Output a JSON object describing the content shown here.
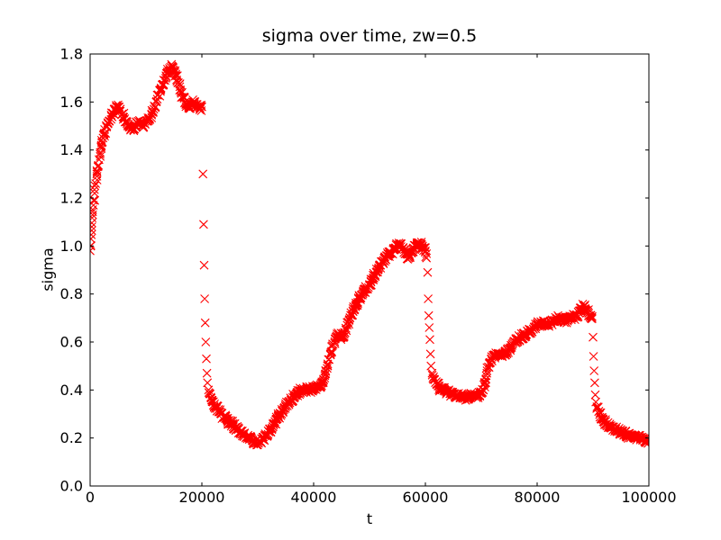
{
  "page": {
    "background": "#ffffff"
  },
  "chart_data": {
    "type": "scatter",
    "title": "sigma over time, zw=0.5",
    "xlabel": "t",
    "ylabel": "sigma",
    "xlim": [
      0,
      100000
    ],
    "ylim": [
      0.0,
      1.8
    ],
    "xticks": [
      0,
      20000,
      40000,
      60000,
      80000,
      100000
    ],
    "xtick_labels": [
      "0",
      "20000",
      "40000",
      "60000",
      "80000",
      "100000"
    ],
    "yticks": [
      0.0,
      0.2,
      0.4,
      0.6,
      0.8,
      1.0,
      1.2,
      1.4,
      1.6,
      1.8
    ],
    "ytick_labels": [
      "0.0",
      "0.2",
      "0.4",
      "0.6",
      "0.8",
      "1.0",
      "1.2",
      "1.4",
      "1.6",
      "1.8"
    ],
    "grid": false,
    "legend": null,
    "marker": "x",
    "marker_color": "#ff0000",
    "marker_size_px": 9,
    "axis_color": "#000000",
    "series": [
      {
        "name": "sigma",
        "points": [
          [
            0,
            0.98,
            1
          ],
          [
            150,
            1.03,
            1
          ],
          [
            300,
            1.08,
            1
          ],
          [
            450,
            1.13,
            1
          ],
          [
            600,
            1.17,
            1
          ],
          [
            800,
            1.22,
            1
          ],
          [
            1000,
            1.26,
            1
          ],
          [
            1200,
            1.3,
            1
          ],
          [
            1400,
            1.33,
            1
          ],
          [
            1600,
            1.36,
            1
          ],
          [
            1800,
            1.39,
            1
          ],
          [
            2000,
            1.42,
            1
          ],
          [
            2300,
            1.45,
            1
          ],
          [
            2600,
            1.47,
            1
          ],
          [
            3000,
            1.5,
            1
          ],
          [
            3400,
            1.52,
            1
          ],
          [
            3800,
            1.54,
            1
          ],
          [
            4200,
            1.55,
            1
          ],
          [
            4600,
            1.57,
            1
          ],
          [
            5000,
            1.58,
            1
          ],
          [
            5400,
            1.57,
            1
          ],
          [
            5800,
            1.55,
            1
          ],
          [
            6200,
            1.53,
            1
          ],
          [
            6600,
            1.51,
            1
          ],
          [
            7000,
            1.5,
            1
          ],
          [
            7400,
            1.49,
            1
          ],
          [
            7800,
            1.48,
            1
          ],
          [
            8200,
            1.5,
            1
          ],
          [
            8600,
            1.52,
            1
          ],
          [
            9000,
            1.51,
            1
          ],
          [
            9400,
            1.5,
            1
          ],
          [
            9800,
            1.51,
            1
          ],
          [
            10200,
            1.52,
            1
          ],
          [
            10600,
            1.53,
            1
          ],
          [
            11000,
            1.55,
            1
          ],
          [
            11400,
            1.57,
            1
          ],
          [
            11800,
            1.6,
            1
          ],
          [
            12200,
            1.63,
            1
          ],
          [
            12600,
            1.65,
            1
          ],
          [
            13000,
            1.67,
            1
          ],
          [
            13400,
            1.69,
            1
          ],
          [
            13800,
            1.72,
            1
          ],
          [
            14200,
            1.74,
            1
          ],
          [
            14600,
            1.75,
            1
          ],
          [
            15000,
            1.73,
            1
          ],
          [
            15400,
            1.71,
            1
          ],
          [
            15800,
            1.68,
            1
          ],
          [
            16200,
            1.65,
            1
          ],
          [
            16600,
            1.62,
            1
          ],
          [
            17000,
            1.6,
            1
          ],
          [
            17400,
            1.59,
            1
          ],
          [
            17800,
            1.58,
            1
          ],
          [
            18200,
            1.59,
            1
          ],
          [
            18600,
            1.6,
            1
          ],
          [
            19000,
            1.59,
            1
          ],
          [
            19400,
            1.58,
            1
          ],
          [
            19700,
            1.57,
            1
          ],
          [
            20000,
            1.58,
            1
          ],
          [
            20200,
            1.3,
            0
          ],
          [
            20300,
            1.09,
            0
          ],
          [
            20400,
            0.92,
            0
          ],
          [
            20500,
            0.78,
            0
          ],
          [
            20600,
            0.68,
            0
          ],
          [
            20700,
            0.6,
            0
          ],
          [
            20800,
            0.53,
            0
          ],
          [
            20900,
            0.47,
            0
          ],
          [
            21000,
            0.43,
            0
          ],
          [
            21200,
            0.4,
            1
          ],
          [
            21600,
            0.37,
            1
          ],
          [
            22000,
            0.35,
            1
          ],
          [
            22500,
            0.33,
            1
          ],
          [
            23000,
            0.31,
            1
          ],
          [
            23500,
            0.3,
            1
          ],
          [
            24000,
            0.285,
            1
          ],
          [
            24500,
            0.275,
            1
          ],
          [
            25000,
            0.265,
            1
          ],
          [
            25500,
            0.255,
            1
          ],
          [
            26000,
            0.245,
            1
          ],
          [
            26500,
            0.235,
            1
          ],
          [
            27000,
            0.225,
            1
          ],
          [
            27500,
            0.215,
            1
          ],
          [
            28000,
            0.205,
            1
          ],
          [
            28500,
            0.2,
            1
          ],
          [
            29000,
            0.19,
            1
          ],
          [
            29500,
            0.185,
            1
          ],
          [
            30000,
            0.18,
            1
          ],
          [
            30500,
            0.185,
            1
          ],
          [
            31000,
            0.195,
            1
          ],
          [
            31500,
            0.21,
            1
          ],
          [
            32000,
            0.225,
            1
          ],
          [
            32500,
            0.24,
            1
          ],
          [
            33000,
            0.26,
            1
          ],
          [
            33500,
            0.28,
            1
          ],
          [
            34000,
            0.3,
            1
          ],
          [
            34500,
            0.315,
            1
          ],
          [
            35000,
            0.33,
            1
          ],
          [
            35500,
            0.345,
            1
          ],
          [
            36000,
            0.36,
            1
          ],
          [
            36500,
            0.375,
            1
          ],
          [
            37000,
            0.385,
            1
          ],
          [
            37500,
            0.395,
            1
          ],
          [
            38000,
            0.4,
            1
          ],
          [
            38500,
            0.4,
            1
          ],
          [
            39000,
            0.405,
            1
          ],
          [
            39500,
            0.4,
            1
          ],
          [
            40000,
            0.405,
            1
          ],
          [
            40500,
            0.41,
            1
          ],
          [
            41000,
            0.415,
            1
          ],
          [
            41500,
            0.43,
            1
          ],
          [
            42000,
            0.46,
            1
          ],
          [
            42500,
            0.5,
            1
          ],
          [
            43000,
            0.55,
            1
          ],
          [
            43500,
            0.59,
            1
          ],
          [
            44000,
            0.62,
            1
          ],
          [
            44500,
            0.63,
            1
          ],
          [
            45000,
            0.62,
            1
          ],
          [
            45500,
            0.64,
            1
          ],
          [
            46000,
            0.67,
            1
          ],
          [
            46500,
            0.7,
            1
          ],
          [
            47000,
            0.73,
            1
          ],
          [
            47500,
            0.75,
            1
          ],
          [
            48000,
            0.78,
            1
          ],
          [
            48500,
            0.795,
            1
          ],
          [
            49000,
            0.81,
            1
          ],
          [
            49500,
            0.825,
            1
          ],
          [
            50000,
            0.84,
            1
          ],
          [
            50500,
            0.86,
            1
          ],
          [
            51000,
            0.88,
            1
          ],
          [
            51500,
            0.9,
            1
          ],
          [
            52000,
            0.92,
            1
          ],
          [
            52500,
            0.94,
            1
          ],
          [
            53000,
            0.96,
            1
          ],
          [
            53500,
            0.965,
            1
          ],
          [
            54000,
            0.97,
            1
          ],
          [
            54500,
            0.99,
            1
          ],
          [
            55000,
            1.0,
            1
          ],
          [
            55500,
            1.01,
            1
          ],
          [
            56000,
            0.99,
            1
          ],
          [
            56500,
            0.97,
            1
          ],
          [
            57000,
            0.95,
            1
          ],
          [
            57500,
            0.97,
            1
          ],
          [
            58000,
            0.99,
            1
          ],
          [
            58500,
            1.0,
            1
          ],
          [
            59000,
            1.01,
            1
          ],
          [
            59500,
            1.0,
            1
          ],
          [
            60000,
            0.98,
            1
          ],
          [
            60200,
            0.95,
            1
          ],
          [
            60400,
            0.89,
            0
          ],
          [
            60500,
            0.78,
            0
          ],
          [
            60600,
            0.71,
            0
          ],
          [
            60700,
            0.66,
            0
          ],
          [
            60800,
            0.61,
            0
          ],
          [
            60900,
            0.55,
            0
          ],
          [
            61000,
            0.5,
            0
          ],
          [
            61200,
            0.47,
            1
          ],
          [
            61600,
            0.445,
            1
          ],
          [
            62000,
            0.425,
            1
          ],
          [
            62500,
            0.41,
            1
          ],
          [
            63000,
            0.4,
            1
          ],
          [
            63500,
            0.395,
            1
          ],
          [
            64000,
            0.39,
            1
          ],
          [
            64500,
            0.385,
            1
          ],
          [
            65000,
            0.38,
            1
          ],
          [
            65500,
            0.38,
            1
          ],
          [
            66000,
            0.375,
            1
          ],
          [
            66500,
            0.375,
            1
          ],
          [
            67000,
            0.37,
            1
          ],
          [
            67500,
            0.37,
            1
          ],
          [
            68000,
            0.375,
            1
          ],
          [
            68500,
            0.375,
            1
          ],
          [
            69000,
            0.38,
            1
          ],
          [
            69500,
            0.38,
            1
          ],
          [
            70000,
            0.385,
            1
          ],
          [
            70400,
            0.4,
            1
          ],
          [
            70700,
            0.43,
            1
          ],
          [
            71000,
            0.47,
            1
          ],
          [
            71400,
            0.51,
            1
          ],
          [
            71800,
            0.53,
            1
          ],
          [
            72200,
            0.54,
            1
          ],
          [
            72600,
            0.545,
            1
          ],
          [
            73000,
            0.55,
            1
          ],
          [
            73500,
            0.55,
            1
          ],
          [
            74000,
            0.55,
            1
          ],
          [
            74500,
            0.56,
            1
          ],
          [
            75000,
            0.57,
            1
          ],
          [
            75500,
            0.585,
            1
          ],
          [
            76000,
            0.6,
            1
          ],
          [
            76500,
            0.61,
            1
          ],
          [
            77000,
            0.62,
            1
          ],
          [
            77500,
            0.625,
            1
          ],
          [
            78000,
            0.63,
            1
          ],
          [
            78500,
            0.64,
            1
          ],
          [
            79000,
            0.65,
            1
          ],
          [
            79500,
            0.66,
            1
          ],
          [
            80000,
            0.67,
            1
          ],
          [
            80500,
            0.675,
            1
          ],
          [
            81000,
            0.68,
            1
          ],
          [
            81500,
            0.675,
            1
          ],
          [
            82000,
            0.67,
            1
          ],
          [
            82500,
            0.68,
            1
          ],
          [
            83000,
            0.69,
            1
          ],
          [
            83500,
            0.695,
            1
          ],
          [
            84000,
            0.7,
            1
          ],
          [
            84500,
            0.695,
            1
          ],
          [
            85000,
            0.69,
            1
          ],
          [
            85500,
            0.695,
            1
          ],
          [
            86000,
            0.7,
            1
          ],
          [
            86500,
            0.705,
            1
          ],
          [
            87000,
            0.71,
            1
          ],
          [
            87500,
            0.72,
            1
          ],
          [
            88000,
            0.74,
            1
          ],
          [
            88300,
            0.75,
            1
          ],
          [
            88600,
            0.74,
            1
          ],
          [
            88900,
            0.73,
            1
          ],
          [
            89200,
            0.72,
            1
          ],
          [
            89500,
            0.71,
            1
          ],
          [
            89800,
            0.7,
            1
          ],
          [
            90000,
            0.62,
            0
          ],
          [
            90100,
            0.54,
            0
          ],
          [
            90200,
            0.48,
            0
          ],
          [
            90300,
            0.43,
            0
          ],
          [
            90400,
            0.38,
            0
          ],
          [
            90500,
            0.35,
            0
          ],
          [
            90700,
            0.33,
            1
          ],
          [
            91000,
            0.31,
            1
          ],
          [
            91500,
            0.285,
            1
          ],
          [
            92000,
            0.27,
            1
          ],
          [
            92500,
            0.26,
            1
          ],
          [
            93000,
            0.25,
            1
          ],
          [
            93500,
            0.245,
            1
          ],
          [
            94000,
            0.235,
            1
          ],
          [
            94500,
            0.23,
            1
          ],
          [
            95000,
            0.225,
            1
          ],
          [
            95500,
            0.22,
            1
          ],
          [
            96000,
            0.215,
            1
          ],
          [
            96500,
            0.21,
            1
          ],
          [
            97000,
            0.21,
            1
          ],
          [
            97500,
            0.205,
            1
          ],
          [
            98000,
            0.2,
            1
          ],
          [
            98500,
            0.2,
            1
          ],
          [
            99000,
            0.195,
            1
          ],
          [
            99500,
            0.19,
            1
          ],
          [
            100000,
            0.19,
            1
          ]
        ]
      }
    ],
    "render_hints": {
      "interp_step_t": 170,
      "jitter_t": 150,
      "jitter_sigma": 0.013,
      "markers_per_step": 2,
      "seed": 20
    }
  }
}
